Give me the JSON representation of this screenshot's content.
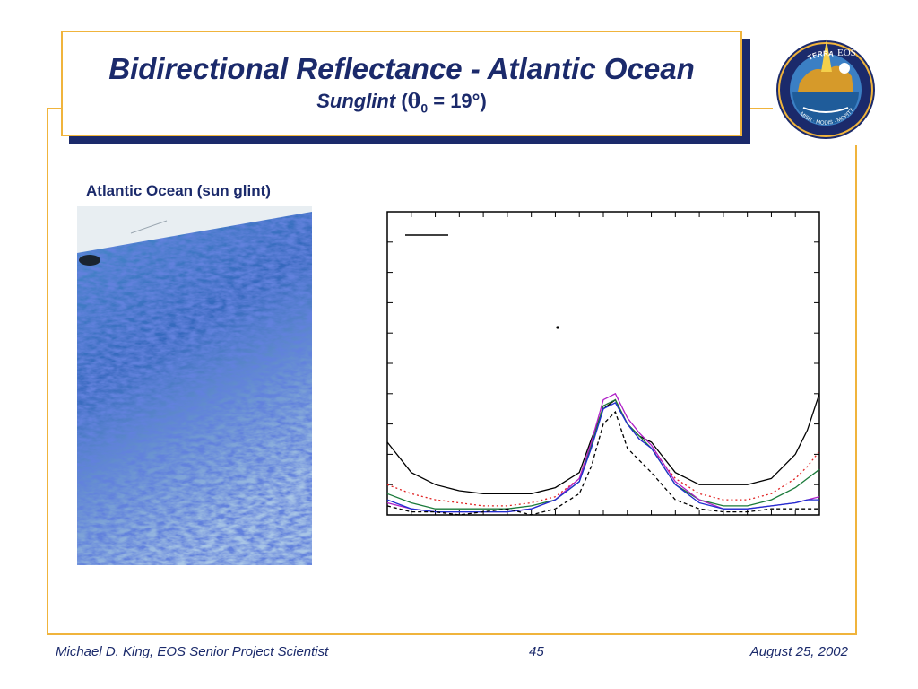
{
  "slide": {
    "title": "Bidirectional Reflectance - Atlantic Ocean",
    "subtitle_word": "Sunglint",
    "subtitle_open": "(",
    "subtitle_theta": "θ",
    "subtitle_sub": "0",
    "subtitle_value": " = 19°)",
    "photo_label": "Atlantic Ocean (sun glint)"
  },
  "logo": {
    "text": "EOS",
    "band_top": "TERRA",
    "band_bottom": "MISR · MODIS · MOPITT"
  },
  "footer": {
    "author": "Michael D. King, EOS Senior Project Scientist",
    "page": "45",
    "date": "August 25, 2002"
  },
  "colors": {
    "navy": "#1b2a6b",
    "gold": "#f0b43c",
    "ocean_light": "#7fb0d8",
    "ocean_dark": "#1f3fa8"
  },
  "chart_data": {
    "type": "line",
    "title": "",
    "xlabel": "",
    "ylabel": "",
    "xlim": [
      -90,
      90
    ],
    "ylim": [
      0,
      1
    ],
    "grid": false,
    "x": [
      -90,
      -80,
      -70,
      -60,
      -50,
      -40,
      -30,
      -20,
      -10,
      -5,
      0,
      5,
      10,
      15,
      20,
      30,
      40,
      50,
      60,
      70,
      80,
      85,
      90
    ],
    "series": [
      {
        "style": "solid",
        "color": "#000000",
        "values": [
          0.24,
          0.14,
          0.1,
          0.08,
          0.07,
          0.07,
          0.07,
          0.09,
          0.14,
          0.25,
          0.35,
          0.38,
          0.3,
          0.26,
          0.24,
          0.14,
          0.1,
          0.1,
          0.1,
          0.12,
          0.2,
          0.28,
          0.4
        ]
      },
      {
        "style": "dotted",
        "color": "#e02020",
        "values": [
          0.1,
          0.07,
          0.05,
          0.04,
          0.03,
          0.03,
          0.04,
          0.06,
          0.12,
          0.24,
          0.36,
          0.38,
          0.3,
          0.25,
          0.22,
          0.12,
          0.07,
          0.05,
          0.05,
          0.07,
          0.12,
          0.16,
          0.21
        ]
      },
      {
        "style": "solid",
        "color": "#1a7a3a",
        "values": [
          0.07,
          0.04,
          0.02,
          0.02,
          0.02,
          0.02,
          0.03,
          0.05,
          0.11,
          0.23,
          0.36,
          0.38,
          0.3,
          0.26,
          0.22,
          0.1,
          0.05,
          0.03,
          0.03,
          0.05,
          0.09,
          0.12,
          0.15
        ]
      },
      {
        "style": "solid",
        "color": "#b020c8",
        "values": [
          0.04,
          0.02,
          0.01,
          0.01,
          0.01,
          0.01,
          0.02,
          0.05,
          0.12,
          0.24,
          0.38,
          0.4,
          0.32,
          0.27,
          0.23,
          0.11,
          0.05,
          0.02,
          0.02,
          0.03,
          0.04,
          0.05,
          0.06
        ]
      },
      {
        "style": "solid",
        "color": "#1f2fd0",
        "values": [
          0.05,
          0.02,
          0.01,
          0.01,
          0.01,
          0.01,
          0.02,
          0.05,
          0.11,
          0.22,
          0.35,
          0.37,
          0.3,
          0.25,
          0.22,
          0.1,
          0.04,
          0.02,
          0.02,
          0.03,
          0.04,
          0.05,
          0.05
        ]
      },
      {
        "style": "dashed",
        "color": "#000000",
        "values": [
          0.03,
          0.01,
          0.01,
          0.0,
          0.01,
          0.02,
          0.0,
          0.02,
          0.07,
          0.16,
          0.3,
          0.34,
          0.22,
          0.18,
          0.14,
          0.05,
          0.02,
          0.01,
          0.01,
          0.02,
          0.02,
          0.02,
          0.02
        ]
      }
    ]
  }
}
